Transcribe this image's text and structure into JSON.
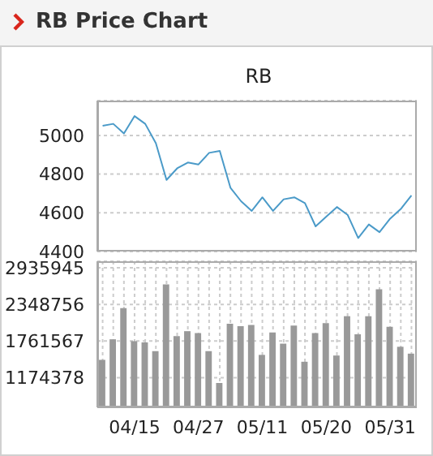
{
  "chart_data": [
    {
      "type": "line",
      "title": "RB Price Chart",
      "subtitle": "RB",
      "series": [
        {
          "color": "#4a9ac8",
          "values": [
            5050,
            5060,
            5010,
            5100,
            5060,
            4960,
            4770,
            4830,
            4860,
            4850,
            4910,
            4920,
            4730,
            4660,
            4610,
            4680,
            4610,
            4670,
            4680,
            4650,
            4530,
            4580,
            4630,
            4590,
            4470,
            4540,
            4500,
            4570,
            4620,
            4690
          ]
        }
      ],
      "ylim": [
        4400,
        5180
      ],
      "yticks": [
        4400,
        4600,
        4800,
        5000
      ],
      "grid": "y",
      "tick_labels": "y"
    },
    {
      "type": "bar",
      "categories": [
        null,
        null,
        null,
        "04/15",
        null,
        null,
        null,
        null,
        null,
        "04/27",
        null,
        null,
        null,
        null,
        null,
        "05/11",
        null,
        null,
        null,
        null,
        null,
        "05/20",
        null,
        null,
        null,
        null,
        null,
        "05/31",
        null,
        null
      ],
      "series": [
        {
          "color": "#999999",
          "values": [
            1460000,
            1790000,
            2290000,
            1760000,
            1740000,
            1600000,
            2670000,
            1840000,
            1920000,
            1890000,
            1600000,
            1090000,
            2040000,
            2000000,
            2020000,
            1540000,
            1900000,
            1720000,
            2010000,
            1430000,
            1890000,
            2050000,
            1530000,
            2160000,
            1870000,
            2160000,
            2590000,
            1990000,
            1670000,
            1560000
          ]
        }
      ],
      "ylim": [
        700000,
        3040000
      ],
      "yticks": [
        1174378,
        1761567,
        2348756,
        2935945
      ],
      "grid": true
    }
  ]
}
